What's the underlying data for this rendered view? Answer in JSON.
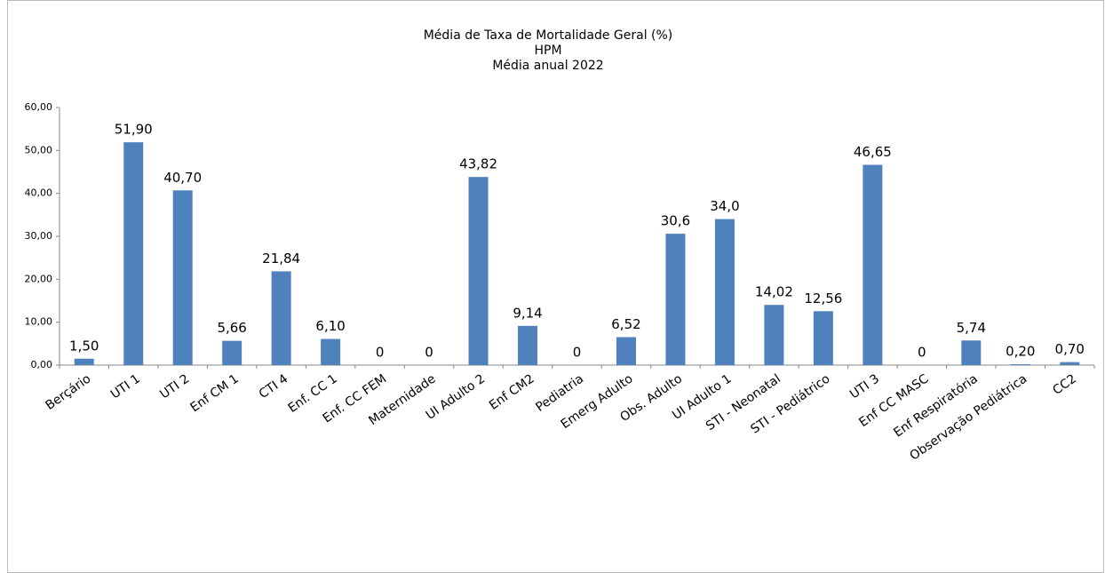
{
  "chart_data": {
    "type": "bar",
    "title": [
      "Média de Taxa de Mortalidade Geral (%)",
      "HPM",
      "Média anual 2022"
    ],
    "categories": [
      "Berçário",
      "UTI 1",
      "UTI 2",
      "Enf CM 1",
      "CTI 4",
      "Enf. CC 1",
      "Enf. CC FEM",
      "Maternidade",
      "UI Adulto 2",
      "Enf CM2",
      "Pediatria",
      "Emerg Adulto",
      "Obs. Adulto",
      "UI Adulto 1",
      "STI - Neonatal",
      "STI - Pediátrico",
      "UTI 3",
      "Enf CC MASC",
      "Enf Respiratória",
      "Observação Pediátrica",
      "CC2"
    ],
    "values": [
      1.5,
      51.9,
      40.7,
      5.66,
      21.84,
      6.1,
      0,
      0,
      43.82,
      9.14,
      0,
      6.52,
      30.6,
      34.0,
      14.02,
      12.56,
      46.65,
      0,
      5.74,
      0.2,
      0.7
    ],
    "value_labels": [
      "1,50",
      "51,90",
      "40,70",
      "5,66",
      "21,84",
      "6,10",
      "0",
      "0",
      "43,82",
      "9,14",
      "0",
      "6,52",
      "30,6",
      "34,0",
      "14,02",
      "12,56",
      "46,65",
      "0",
      "5,74",
      "0,20",
      "0,70"
    ],
    "color": "#4f81bd",
    "ylim": [
      0,
      60
    ],
    "yticks": [
      {
        "value": 0,
        "label": "0,00"
      },
      {
        "value": 10,
        "label": "10,00"
      },
      {
        "value": 20,
        "label": "20,00"
      },
      {
        "value": 30,
        "label": "30,00"
      },
      {
        "value": 40,
        "label": "40,00"
      },
      {
        "value": 50,
        "label": "50,00"
      },
      {
        "value": 60,
        "label": "60,00"
      }
    ],
    "grid": false
  }
}
